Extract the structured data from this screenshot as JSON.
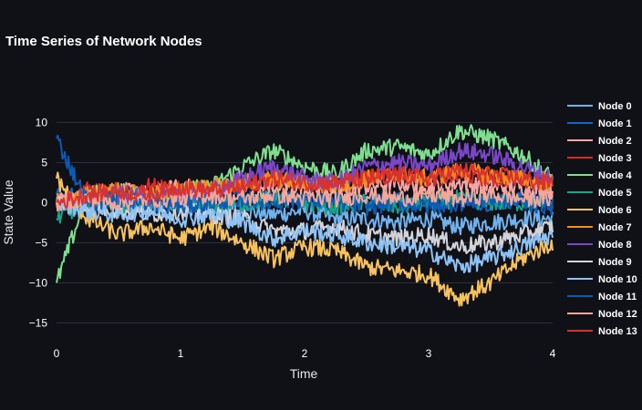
{
  "chart_data": {
    "type": "line",
    "title": "Time Series of Network Nodes",
    "xlabel": "Time",
    "ylabel": "State Value",
    "xlim": [
      0,
      4
    ],
    "ylim": [
      -17,
      13
    ],
    "x_ticks": [
      0,
      1,
      2,
      3,
      4
    ],
    "y_ticks": [
      10,
      5,
      0,
      -5,
      -10,
      -15
    ],
    "grid": "horizontal",
    "legend_position": "right",
    "series": [
      {
        "name": "Node 0",
        "color": "#6fb2ee",
        "x": [
          0,
          0.25,
          0.5,
          0.75,
          1.0,
          1.25,
          1.5,
          1.75,
          2.0,
          2.25,
          2.5,
          2.75,
          3.0,
          3.25,
          3.5,
          3.75,
          4.0
        ],
        "y": [
          0,
          0.5,
          0,
          -0.5,
          0,
          -0.5,
          -1,
          -1.5,
          -1,
          -2,
          -2,
          -2.5,
          -2,
          -3,
          -2.5,
          -2,
          -2
        ]
      },
      {
        "name": "Node 1",
        "color": "#1167c9",
        "x": [
          0,
          0.25,
          0.5,
          0.75,
          1.0,
          1.25,
          1.5,
          1.75,
          2.0,
          2.25,
          2.5,
          2.75,
          3.0,
          3.25,
          3.5,
          3.75,
          4.0
        ],
        "y": [
          1,
          0.5,
          0,
          0.5,
          0,
          0.5,
          0,
          0.5,
          0,
          0.5,
          0,
          0.5,
          0,
          0.5,
          0,
          0.5,
          0
        ]
      },
      {
        "name": "Node 2",
        "color": "#f7a4a4",
        "x": [
          0,
          0.25,
          0.5,
          0.75,
          1.0,
          1.25,
          1.5,
          1.75,
          2.0,
          2.25,
          2.5,
          2.75,
          3.0,
          3.25,
          3.5,
          3.75,
          4.0
        ],
        "y": [
          0,
          1,
          1.5,
          1,
          2,
          1.5,
          2,
          2.5,
          2,
          1.5,
          2,
          2.5,
          2,
          2.5,
          2,
          2,
          1.5
        ]
      },
      {
        "name": "Node 3",
        "color": "#d62c2c",
        "x": [
          0,
          0.25,
          0.5,
          0.75,
          1.0,
          1.25,
          1.5,
          1.75,
          2.0,
          2.25,
          2.5,
          2.75,
          3.0,
          3.25,
          3.5,
          3.75,
          4.0
        ],
        "y": [
          0,
          1.5,
          1,
          2,
          1.5,
          2,
          2,
          3,
          2.5,
          3,
          3,
          3.5,
          3,
          3.5,
          3,
          3,
          2.5
        ]
      },
      {
        "name": "Node 4",
        "color": "#7ee08f",
        "x": [
          0,
          0.25,
          0.5,
          0.75,
          1.0,
          1.25,
          1.5,
          1.75,
          2.0,
          2.25,
          2.5,
          2.75,
          3.0,
          3.25,
          3.5,
          3.75,
          4.0
        ],
        "y": [
          -10,
          1,
          1.5,
          0.5,
          1.5,
          2,
          4.5,
          6.5,
          4.5,
          3.5,
          6.5,
          7,
          6,
          9,
          8,
          6,
          3
        ]
      },
      {
        "name": "Node 5",
        "color": "#19a28c",
        "x": [
          0,
          0.25,
          0.5,
          0.75,
          1.0,
          1.25,
          1.5,
          1.75,
          2.0,
          2.25,
          2.5,
          2.75,
          3.0,
          3.25,
          3.5,
          3.75,
          4.0
        ],
        "y": [
          -2,
          0,
          -0.5,
          0,
          0,
          -0.5,
          0,
          0.5,
          0,
          -0.5,
          0,
          -0.5,
          0,
          0.5,
          0,
          0,
          0
        ]
      },
      {
        "name": "Node 6",
        "color": "#f7c25e",
        "x": [
          0,
          0.25,
          0.5,
          0.75,
          1.0,
          1.25,
          1.5,
          1.75,
          2.0,
          2.25,
          2.5,
          2.75,
          3.0,
          3.25,
          3.5,
          3.75,
          4.0
        ],
        "y": [
          3,
          -2,
          -4,
          -3,
          -4.5,
          -3,
          -5,
          -7,
          -5.5,
          -6,
          -8,
          -8.5,
          -9,
          -12,
          -10,
          -7,
          -5
        ]
      },
      {
        "name": "Node 7",
        "color": "#f58d1a",
        "x": [
          0,
          0.25,
          0.5,
          0.75,
          1.0,
          1.25,
          1.5,
          1.75,
          2.0,
          2.25,
          2.5,
          2.75,
          3.0,
          3.25,
          3.5,
          3.75,
          4.0
        ],
        "y": [
          0,
          1,
          1.5,
          1,
          1.5,
          2,
          2.5,
          3,
          2.5,
          2,
          3,
          3.5,
          3,
          4,
          3.5,
          3,
          2.5
        ]
      },
      {
        "name": "Node 8",
        "color": "#7a47c9",
        "x": [
          0,
          0.25,
          0.5,
          0.75,
          1.0,
          1.25,
          1.5,
          1.75,
          2.0,
          2.25,
          2.5,
          2.75,
          3.0,
          3.25,
          3.5,
          3.75,
          4.0
        ],
        "y": [
          0,
          0.5,
          1,
          0.5,
          1,
          1.5,
          3,
          4.5,
          3,
          2.5,
          4.5,
          5,
          4.5,
          6.5,
          6,
          4.5,
          3
        ]
      },
      {
        "name": "Node 9",
        "color": "#d2d4da",
        "x": [
          0,
          0.25,
          0.5,
          0.75,
          1.0,
          1.25,
          1.5,
          1.75,
          2.0,
          2.25,
          2.5,
          2.75,
          3.0,
          3.25,
          3.5,
          3.75,
          4.0
        ],
        "y": [
          0,
          -0.5,
          -1,
          -1.5,
          -1,
          -1.5,
          -2,
          -3.5,
          -3.5,
          -3,
          -4,
          -4.5,
          -4,
          -5.5,
          -5,
          -4,
          -3
        ]
      },
      {
        "name": "Node 10",
        "color": "#8dc2f5",
        "x": [
          0,
          0.25,
          0.5,
          0.75,
          1.0,
          1.25,
          1.5,
          1.75,
          2.0,
          2.25,
          2.5,
          2.75,
          3.0,
          3.25,
          3.5,
          3.75,
          4.0
        ],
        "y": [
          0,
          -1,
          -1.5,
          -1,
          -2,
          -1.5,
          -2.5,
          -4.5,
          -3.5,
          -4,
          -5,
          -5.5,
          -6,
          -8,
          -7,
          -5.5,
          -4
        ]
      },
      {
        "name": "Node 11",
        "color": "#0b5ab3",
        "x": [
          0,
          0.25,
          0.5,
          0.75,
          1.0,
          1.25,
          1.5,
          1.75,
          2.0,
          2.25,
          2.5,
          2.75,
          3.0,
          3.25,
          3.5,
          3.75,
          4.0
        ],
        "y": [
          8,
          0,
          0.5,
          0,
          -0.5,
          0,
          0.5,
          0,
          0.5,
          0,
          -0.5,
          0,
          -0.5,
          0,
          0.5,
          0,
          -0.5
        ]
      },
      {
        "name": "Node 12",
        "color": "#f3a79a",
        "x": [
          0,
          0.25,
          0.5,
          0.75,
          1.0,
          1.25,
          1.5,
          1.75,
          2.0,
          2.25,
          2.5,
          2.75,
          3.0,
          3.25,
          3.5,
          3.75,
          4.0
        ],
        "y": [
          0,
          0.5,
          0,
          0.5,
          0.5,
          1,
          0.5,
          1,
          0.5,
          0.5,
          1,
          0.5,
          1,
          0.5,
          1,
          0.5,
          0.5
        ]
      },
      {
        "name": "Node 13",
        "color": "#d8322f",
        "x": [
          0,
          0.25,
          0.5,
          0.75,
          1.0,
          1.25,
          1.5,
          1.75,
          2.0,
          2.25,
          2.5,
          2.75,
          3.0,
          3.25,
          3.5,
          3.75,
          4.0
        ],
        "y": [
          0,
          1,
          1.5,
          1,
          2,
          1.5,
          2,
          3,
          2.5,
          2.5,
          3,
          3.5,
          3,
          4,
          3.5,
          3,
          2.5
        ]
      }
    ]
  }
}
